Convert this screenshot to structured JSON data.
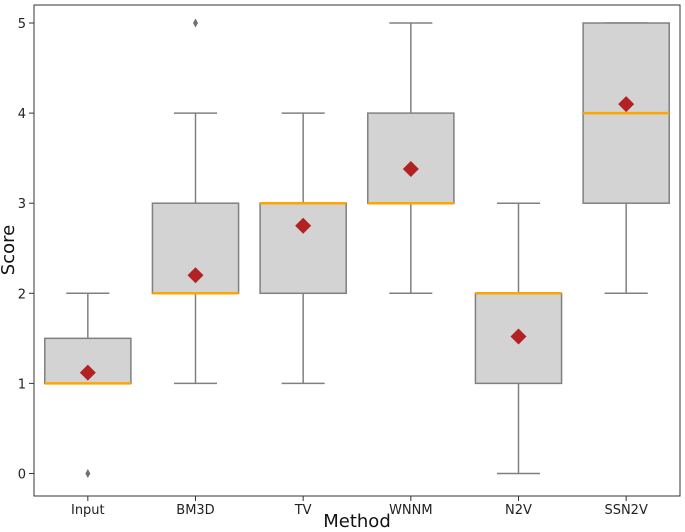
{
  "chart_data": {
    "type": "boxplot",
    "title": "",
    "xlabel": "Method",
    "ylabel": "Score",
    "ylim": [
      -0.25,
      5.2
    ],
    "yticks": [
      0,
      1,
      2,
      3,
      4,
      5
    ],
    "grid": false,
    "categories": [
      "Input",
      "BM3D",
      "TV",
      "WNNM",
      "N2V",
      "SSN2V"
    ],
    "boxes": [
      {
        "label": "Input",
        "whisker_low": 1,
        "q1": 1,
        "median": 1,
        "q3": 1.5,
        "whisker_high": 2,
        "mean": 1.12,
        "outliers": [
          0
        ]
      },
      {
        "label": "BM3D",
        "whisker_low": 1,
        "q1": 2,
        "median": 2,
        "q3": 3,
        "whisker_high": 4,
        "mean": 2.2,
        "outliers": [
          5
        ]
      },
      {
        "label": "TV",
        "whisker_low": 1,
        "q1": 2,
        "median": 3,
        "q3": 3,
        "whisker_high": 4,
        "mean": 2.75,
        "outliers": []
      },
      {
        "label": "WNNM",
        "whisker_low": 2,
        "q1": 3,
        "median": 3,
        "q3": 4,
        "whisker_high": 5,
        "mean": 3.38,
        "outliers": []
      },
      {
        "label": "N2V",
        "whisker_low": 0,
        "q1": 1,
        "median": 2,
        "q3": 2,
        "whisker_high": 3,
        "mean": 1.52,
        "outliers": []
      },
      {
        "label": "SSN2V",
        "whisker_low": 2,
        "q1": 3,
        "median": 4,
        "q3": 5,
        "whisker_high": 5,
        "mean": 4.1,
        "outliers": []
      }
    ],
    "colors": {
      "box_fill": "#d3d3d3",
      "box_edge": "#808080",
      "median": "#ffa500",
      "mean_marker": "#b22222",
      "outlier": "#707070",
      "axes": "#333333"
    }
  }
}
